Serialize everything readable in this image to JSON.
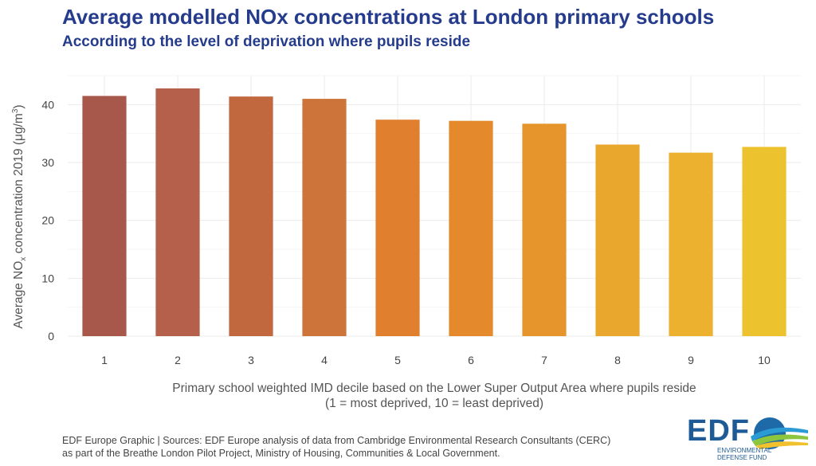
{
  "header": {
    "title": "Average modelled NOx concentrations at London primary schools",
    "subtitle": "According to the level of deprivation where pupils reside"
  },
  "axis": {
    "ylabel_main": "Average NO",
    "ylabel_sub": "x",
    "ylabel_rest": " concentration 2019 (μg/m",
    "ylabel_sup": "3",
    "ylabel_end": ")",
    "xlabel_line1": "Primary school weighted IMD decile based on the Lower Super Output Area where pupils reside",
    "xlabel_line2": "(1 = most deprived, 10 = least deprived)"
  },
  "caption": {
    "line1": "EDF Europe Graphic | Sources: EDF Europe analysis of data from Cambridge Environmental Research Consultants (CERC)",
    "line2": "as part of the Breathe London Pilot Project, Ministry of Housing, Communities & Local Government."
  },
  "logo": {
    "word": "EDF",
    "sub_line1": "ENVIRONMENTAL",
    "sub_line2": "DEFENSE FUND"
  },
  "chart_data": {
    "type": "bar",
    "categories": [
      "1",
      "2",
      "3",
      "4",
      "5",
      "6",
      "7",
      "8",
      "9",
      "10"
    ],
    "values": [
      41.5,
      42.8,
      41.4,
      41.0,
      37.4,
      37.2,
      36.7,
      33.1,
      31.7,
      32.7
    ],
    "colors": [
      "#a8584a",
      "#b5604a",
      "#c1683f",
      "#cd743a",
      "#e07f2e",
      "#e48a2c",
      "#e6952c",
      "#e9a72d",
      "#ebb12f",
      "#edc22f"
    ],
    "ylim": [
      0,
      45
    ],
    "yticks": [
      0,
      10,
      20,
      30,
      40
    ],
    "grid": true
  }
}
